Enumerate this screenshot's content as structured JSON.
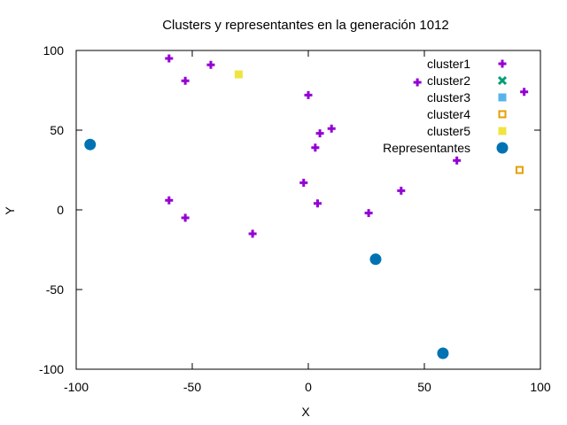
{
  "chart_data": {
    "type": "scatter",
    "title": "Clusters y representantes en la generación 1012",
    "xlabel": "X",
    "ylabel": "Y",
    "xlim": [
      -100,
      100
    ],
    "ylim": [
      -100,
      100
    ],
    "xticks": [
      -100,
      -50,
      0,
      50,
      100
    ],
    "yticks": [
      -100,
      -50,
      0,
      50,
      100
    ],
    "grid": false,
    "legend_position": "top-right",
    "series": [
      {
        "name": "cluster1",
        "marker": "plus",
        "color": "#9400d3",
        "points": [
          [
            -60,
            95
          ],
          [
            -42,
            91
          ],
          [
            -53,
            81
          ],
          [
            0,
            72
          ],
          [
            47,
            80
          ],
          [
            93,
            74
          ],
          [
            10,
            51
          ],
          [
            5,
            48
          ],
          [
            3,
            39
          ],
          [
            64,
            31
          ],
          [
            -2,
            17
          ],
          [
            40,
            12
          ],
          [
            -60,
            6
          ],
          [
            4,
            4
          ],
          [
            26,
            -2
          ],
          [
            -53,
            -5
          ],
          [
            -24,
            -15
          ]
        ]
      },
      {
        "name": "cluster2",
        "marker": "cross",
        "color": "#009e73",
        "points": []
      },
      {
        "name": "cluster3",
        "marker": "filled-square",
        "color": "#56b4e9",
        "points": []
      },
      {
        "name": "cluster4",
        "marker": "open-square",
        "color": "#e69f00",
        "points": [
          [
            91,
            25
          ]
        ]
      },
      {
        "name": "cluster5",
        "marker": "filled-square",
        "color": "#f0e442",
        "points": [
          [
            -30,
            85
          ]
        ]
      },
      {
        "name": "Representantes",
        "marker": "filled-circle",
        "color": "#0072b2",
        "points": [
          [
            -94,
            41
          ],
          [
            29,
            -31
          ],
          [
            58,
            -90
          ]
        ]
      }
    ]
  }
}
